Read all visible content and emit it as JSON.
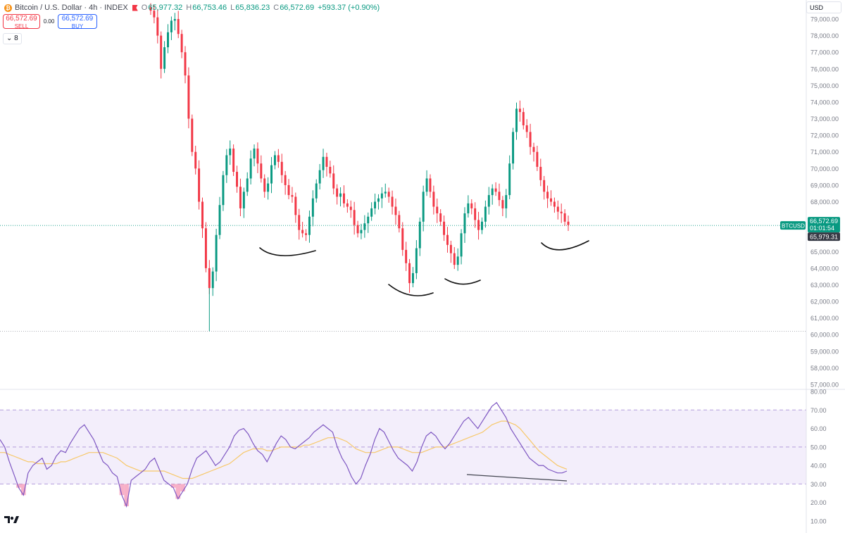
{
  "legend": {
    "symbol_icon": "bitcoin-icon",
    "title": "Bitcoin / U.S. Dollar · 4h · INDEX",
    "open_key": "O",
    "open": "65,977.32",
    "high_key": "H",
    "high": "66,753.46",
    "low_key": "L",
    "low": "65,836.23",
    "close_key": "C",
    "close": "66,572.69",
    "change": "+593.37 (+0.90%)"
  },
  "trade": {
    "sell_price": "66,572.69",
    "sell_label": "SELL",
    "spread": "0.00",
    "buy_price": "66,572.69",
    "buy_label": "BUY"
  },
  "indicators_toggle": "8",
  "currency": "USD",
  "price_badge": {
    "symbol": "BTCUSD",
    "price": "66,572.69",
    "countdown": "01:01:54",
    "crosshair_price": "65,979.31"
  },
  "colors": {
    "up": "#089981",
    "down": "#f23645",
    "rsi_line": "#7e57c2",
    "rsi_ma": "#f7c86a",
    "rsi_band": "#f3eefb"
  },
  "chart_data": [
    {
      "type": "candlestick",
      "interval": "4h",
      "ylim": [
        56500,
        79800
      ],
      "yticks": [
        {
          "value": 57000,
          "label": "57,000.00"
        },
        {
          "value": 58000,
          "label": "58,000.00"
        },
        {
          "value": 59000,
          "label": "59,000.00"
        },
        {
          "value": 60000,
          "label": "60,000.00"
        },
        {
          "value": 61000,
          "label": "61,000.00"
        },
        {
          "value": 62000,
          "label": "62,000.00"
        },
        {
          "value": 63000,
          "label": "63,000.00"
        },
        {
          "value": 64000,
          "label": "64,000.00"
        },
        {
          "value": 65000,
          "label": "65,000.00"
        },
        {
          "value": 66000,
          "label": "66,000.00"
        },
        {
          "value": 68000,
          "label": "68,000.00"
        },
        {
          "value": 69000,
          "label": "69,000.00"
        },
        {
          "value": 70000,
          "label": "70,000.00"
        },
        {
          "value": 71000,
          "label": "71,000.00"
        },
        {
          "value": 72000,
          "label": "72,000.00"
        },
        {
          "value": 73000,
          "label": "73,000.00"
        },
        {
          "value": 74000,
          "label": "74,000.00"
        },
        {
          "value": 75000,
          "label": "75,000.00"
        },
        {
          "value": 76000,
          "label": "76,000.00"
        },
        {
          "value": 77000,
          "label": "77,000.00"
        },
        {
          "value": 78000,
          "label": "78,000.00"
        },
        {
          "value": 79000,
          "label": "79,000.00"
        }
      ],
      "last_price": 66572.69,
      "low_line": 60200,
      "close_series": [
        79500,
        79100,
        78000,
        76000,
        77300,
        78200,
        78900,
        79000,
        78100,
        77000,
        75600,
        73000,
        71000,
        70000,
        68000,
        66400,
        64000,
        62800,
        63800,
        66000,
        67800,
        69600,
        70800,
        71200,
        69800,
        68900,
        67600,
        68600,
        69400,
        70600,
        71200,
        70300,
        69400,
        68600,
        69100,
        70200,
        70800,
        70400,
        69600,
        69000,
        68400,
        68300,
        67200,
        66300,
        66100,
        66000,
        67100,
        68200,
        69100,
        69900,
        70700,
        70100,
        69700,
        68800,
        68300,
        68500,
        67900,
        67700,
        67500,
        66600,
        66100,
        66300,
        66700,
        67100,
        67600,
        68000,
        68200,
        68500,
        68600,
        68300,
        67700,
        67200,
        66400,
        65100,
        64300,
        63100,
        63700,
        65200,
        66800,
        68600,
        69400,
        68600,
        67700,
        67300,
        66800,
        66000,
        65400,
        64900,
        64200,
        64700,
        66100,
        67300,
        67900,
        67600,
        66900,
        66300,
        66800,
        67700,
        68400,
        68800,
        68600,
        68100,
        67600,
        68400,
        70300,
        72200,
        73600,
        73400,
        72600,
        72200,
        71300,
        71000,
        70100,
        69300,
        68600,
        68200,
        68000,
        67700,
        67400,
        67300,
        66800,
        66600
      ],
      "annotations": [
        "curve-1",
        "curve-2",
        "curve-3",
        "curve-4"
      ]
    },
    {
      "type": "line",
      "indicator": "RSI",
      "ylim": [
        6,
        81
      ],
      "bands": [
        30,
        50,
        70
      ],
      "yticks": [
        {
          "value": 10,
          "label": "10.00"
        },
        {
          "value": 20,
          "label": "20.00"
        },
        {
          "value": 30,
          "label": "30.00"
        },
        {
          "value": 40,
          "label": "40.00"
        },
        {
          "value": 50,
          "label": "50.00"
        },
        {
          "value": 60,
          "label": "60.00"
        },
        {
          "value": 70,
          "label": "70.00"
        },
        {
          "value": 80,
          "label": "80.00"
        }
      ],
      "rsi": [
        54,
        50,
        42,
        35,
        28,
        24,
        36,
        40,
        42,
        44,
        38,
        40,
        45,
        48,
        47,
        52,
        56,
        60,
        62,
        58,
        54,
        48,
        42,
        40,
        36,
        34,
        24,
        18,
        32,
        34,
        36,
        38,
        42,
        44,
        38,
        32,
        30,
        28,
        22,
        26,
        30,
        38,
        44,
        46,
        48,
        44,
        40,
        42,
        46,
        50,
        56,
        59,
        60,
        57,
        52,
        48,
        46,
        42,
        47,
        52,
        56,
        54,
        50,
        49,
        51,
        53,
        55,
        58,
        60,
        62,
        60,
        58,
        50,
        44,
        40,
        34,
        30,
        33,
        40,
        46,
        54,
        60,
        58,
        53,
        48,
        44,
        42,
        40,
        37,
        42,
        50,
        56,
        58,
        56,
        52,
        49,
        52,
        56,
        60,
        64,
        66,
        63,
        60,
        64,
        68,
        72,
        74,
        70,
        66,
        60,
        56,
        52,
        48,
        44,
        42,
        40,
        40,
        38,
        37,
        36,
        36,
        37
      ],
      "rsi_ma": [
        47,
        47,
        46,
        45,
        44,
        43,
        42,
        42,
        41,
        41,
        41,
        41,
        41,
        42,
        42,
        43,
        44,
        45,
        46,
        47,
        47,
        47,
        47,
        46,
        45,
        44,
        42,
        40,
        39,
        38,
        37,
        37,
        37,
        37,
        37,
        37,
        36,
        35,
        34,
        33,
        33,
        33,
        34,
        35,
        36,
        37,
        38,
        39,
        40,
        41,
        43,
        45,
        47,
        48,
        49,
        49,
        49,
        48,
        48,
        49,
        50,
        50,
        50,
        50,
        50,
        51,
        51,
        52,
        53,
        54,
        55,
        55,
        55,
        54,
        53,
        51,
        49,
        48,
        47,
        47,
        47,
        48,
        49,
        50,
        50,
        50,
        49,
        48,
        47,
        47,
        47,
        48,
        49,
        50,
        50,
        50,
        51,
        52,
        53,
        54,
        55,
        56,
        57,
        58,
        60,
        62,
        63,
        64,
        64,
        63,
        62,
        60,
        57,
        54,
        51,
        48,
        46,
        44,
        42,
        40,
        39,
        38
      ],
      "annotations": [
        "divergence-trendline"
      ]
    }
  ]
}
